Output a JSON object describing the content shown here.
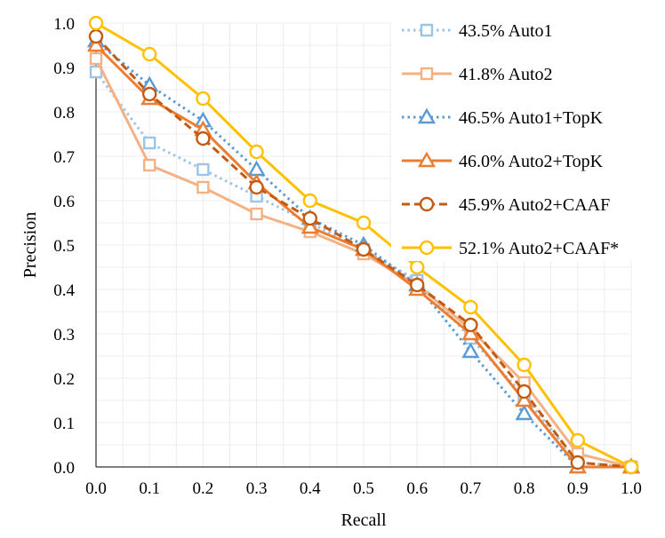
{
  "chart_data": {
    "type": "line",
    "title": "",
    "xlabel": "Recall",
    "ylabel": "Precision",
    "xlim": [
      0.0,
      1.0
    ],
    "ylim": [
      0.0,
      1.0
    ],
    "grid": true,
    "legend_position": "top-right",
    "x": [
      0.0,
      0.1,
      0.2,
      0.3,
      0.4,
      0.5,
      0.6,
      0.7,
      0.8,
      0.9,
      1.0
    ],
    "x_tick_labels": [
      "0.0",
      "0.1",
      "0.2",
      "0.3",
      "0.4",
      "0.5",
      "0.6",
      "0.7",
      "0.8",
      "0.9",
      "1.0"
    ],
    "y_tick_labels": [
      "0.0",
      "0.1",
      "0.2",
      "0.3",
      "0.4",
      "0.5",
      "0.6",
      "0.7",
      "0.8",
      "0.9",
      "1.0"
    ],
    "series": [
      {
        "name": "43.5% Auto1",
        "color": "#9DC3E6",
        "dash": "dotted",
        "marker": "square",
        "values": [
          0.89,
          0.73,
          0.67,
          0.61,
          0.55,
          0.49,
          0.42,
          0.29,
          0.16,
          0.01,
          0.0
        ]
      },
      {
        "name": "41.8% Auto2",
        "color": "#F4B183",
        "dash": "solid",
        "marker": "square",
        "values": [
          0.92,
          0.68,
          0.63,
          0.57,
          0.53,
          0.48,
          0.41,
          0.31,
          0.19,
          0.03,
          0.0
        ]
      },
      {
        "name": "46.5% Auto1+TopK",
        "color": "#5B9BD5",
        "dash": "dotted",
        "marker": "triangle",
        "values": [
          0.96,
          0.86,
          0.78,
          0.67,
          0.56,
          0.5,
          0.41,
          0.26,
          0.12,
          0.0,
          0.0
        ]
      },
      {
        "name": "46.0% Auto2+TopK",
        "color": "#ED7D31",
        "dash": "solid",
        "marker": "triangle",
        "values": [
          0.95,
          0.83,
          0.76,
          0.64,
          0.54,
          0.49,
          0.4,
          0.3,
          0.15,
          0.0,
          0.0
        ]
      },
      {
        "name": "45.9% Auto2+CAAF",
        "color": "#C55A11",
        "dash": "dashed",
        "marker": "circle",
        "values": [
          0.97,
          0.84,
          0.74,
          0.63,
          0.56,
          0.49,
          0.41,
          0.32,
          0.17,
          0.01,
          0.0
        ]
      },
      {
        "name": "52.1% Auto2+CAAF*",
        "color": "#FFC000",
        "dash": "solid",
        "marker": "circle",
        "values": [
          1.0,
          0.93,
          0.83,
          0.71,
          0.6,
          0.55,
          0.45,
          0.36,
          0.23,
          0.06,
          0.0
        ]
      }
    ]
  }
}
